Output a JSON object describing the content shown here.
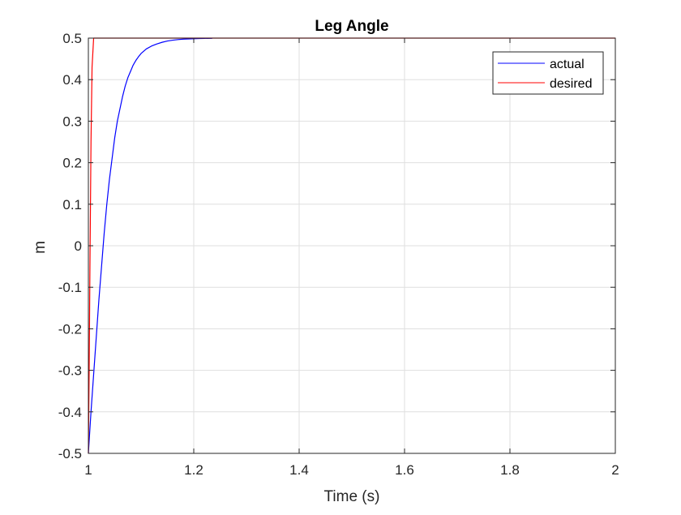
{
  "chart_data": {
    "type": "line",
    "title": "Leg Angle",
    "xlabel": "Time (s)",
    "ylabel": "m",
    "xlim": [
      1,
      2
    ],
    "ylim": [
      -0.5,
      0.5
    ],
    "xticks": [
      1,
      1.2,
      1.4,
      1.6,
      1.8,
      2
    ],
    "xtick_labels": [
      "1",
      "1.2",
      "1.4",
      "1.6",
      "1.8",
      "2"
    ],
    "yticks": [
      -0.5,
      -0.4,
      -0.3,
      -0.2,
      -0.1,
      0,
      0.1,
      0.2,
      0.3,
      0.4,
      0.5
    ],
    "ytick_labels": [
      "-0.5",
      "-0.4",
      "-0.3",
      "-0.2",
      "-0.1",
      "0",
      "0.1",
      "0.2",
      "0.3",
      "0.4",
      "0.5"
    ],
    "grid": true,
    "legend_position": "top-right",
    "series": [
      {
        "name": "actual",
        "color": "#0000ff",
        "x": [
          1.0,
          1.005,
          1.01,
          1.015,
          1.02,
          1.025,
          1.03,
          1.035,
          1.04,
          1.045,
          1.05,
          1.055,
          1.06,
          1.065,
          1.07,
          1.075,
          1.08,
          1.085,
          1.09,
          1.095,
          1.1,
          1.11,
          1.12,
          1.13,
          1.14,
          1.15,
          1.16,
          1.17,
          1.18,
          1.19,
          1.2,
          1.21,
          1.22,
          1.235
        ],
        "y": [
          -0.5,
          -0.4,
          -0.31,
          -0.22,
          -0.13,
          -0.05,
          0.03,
          0.1,
          0.16,
          0.21,
          0.26,
          0.3,
          0.33,
          0.36,
          0.385,
          0.405,
          0.42,
          0.435,
          0.446,
          0.455,
          0.463,
          0.474,
          0.481,
          0.486,
          0.49,
          0.493,
          0.495,
          0.4965,
          0.4975,
          0.498,
          0.4985,
          0.499,
          0.4993,
          0.4995
        ]
      },
      {
        "name": "desired",
        "color": "#ff0000",
        "x": [
          1.0,
          1.0015,
          1.003,
          1.005,
          1.007,
          1.01,
          2.0
        ],
        "y": [
          -0.5,
          -0.3,
          -0.05,
          0.25,
          0.43,
          0.5,
          0.5
        ]
      }
    ]
  }
}
